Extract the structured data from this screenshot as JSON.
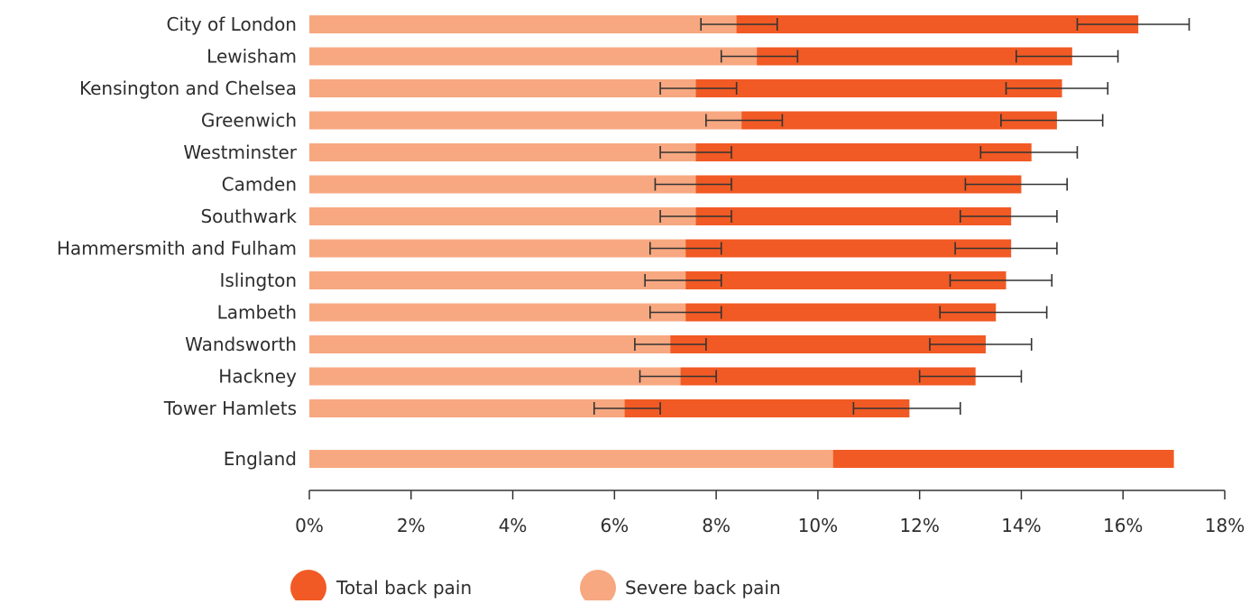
{
  "chart_data": {
    "type": "bar",
    "orientation": "horizontal",
    "stacking": "overlay",
    "categories": [
      "City of London",
      "Lewisham",
      "Kensington and Chelsea",
      "Greenwich",
      "Westminster",
      "Camden",
      "Southwark",
      "Hammersmith and Fulham",
      "Islington",
      "Lambeth",
      "Wandsworth",
      "Hackney",
      "Tower Hamlets",
      "England"
    ],
    "series": [
      {
        "name": "Total back pain",
        "color": "#f15a24",
        "values": [
          16.3,
          15.0,
          14.8,
          14.7,
          14.2,
          14.0,
          13.8,
          13.8,
          13.7,
          13.5,
          13.3,
          13.1,
          11.8,
          17.0
        ],
        "error_low": [
          15.1,
          13.9,
          13.7,
          13.6,
          13.2,
          12.9,
          12.8,
          12.7,
          12.6,
          12.4,
          12.2,
          12.0,
          10.7,
          null
        ],
        "error_high": [
          17.3,
          15.9,
          15.7,
          15.6,
          15.1,
          14.9,
          14.7,
          14.7,
          14.6,
          14.5,
          14.2,
          14.0,
          12.8,
          null
        ]
      },
      {
        "name": "Severe back pain",
        "color": "#f7a880",
        "values": [
          8.4,
          8.8,
          7.6,
          8.5,
          7.6,
          7.6,
          7.6,
          7.4,
          7.4,
          7.4,
          7.1,
          7.3,
          6.2,
          10.3
        ],
        "error_low": [
          7.7,
          8.1,
          6.9,
          7.8,
          6.9,
          6.8,
          6.9,
          6.7,
          6.6,
          6.7,
          6.4,
          6.5,
          5.6,
          null
        ],
        "error_high": [
          9.2,
          9.6,
          8.4,
          9.3,
          8.3,
          8.3,
          8.3,
          8.1,
          8.1,
          8.1,
          7.8,
          8.0,
          6.9,
          null
        ]
      }
    ],
    "xlim": [
      0,
      18
    ],
    "x_ticks": [
      0,
      2,
      4,
      6,
      8,
      10,
      12,
      14,
      16,
      18
    ],
    "x_tick_labels": [
      "0%",
      "2%",
      "4%",
      "6%",
      "8%",
      "10%",
      "12%",
      "14%",
      "16%",
      "18%"
    ],
    "grid": false,
    "legend_position": "bottom-left"
  }
}
